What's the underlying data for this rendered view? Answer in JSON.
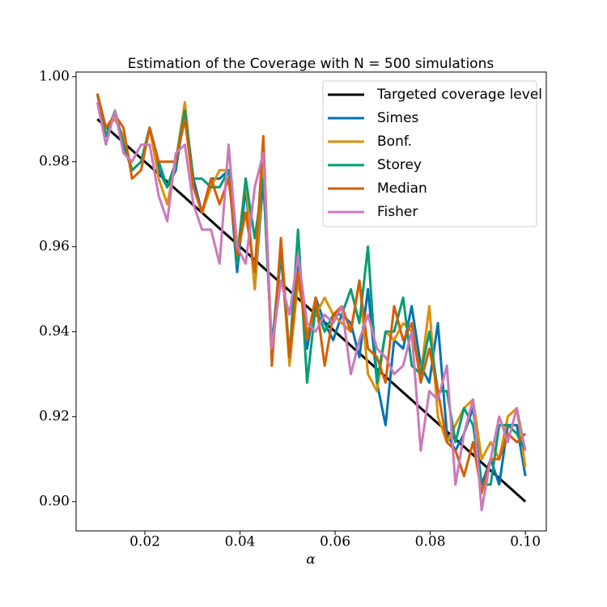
{
  "chart_data": {
    "type": "line",
    "title": "Estimation of the Coverage with N = 500 simulations",
    "xlabel": "α",
    "x": [
      0.01,
      0.0118,
      0.0137,
      0.0155,
      0.0173,
      0.0192,
      0.021,
      0.0229,
      0.0247,
      0.0265,
      0.0284,
      0.0302,
      0.032,
      0.0339,
      0.0357,
      0.0376,
      0.0394,
      0.0412,
      0.0431,
      0.0449,
      0.0467,
      0.0486,
      0.0504,
      0.0522,
      0.0541,
      0.0559,
      0.0578,
      0.0596,
      0.0614,
      0.0633,
      0.0651,
      0.0669,
      0.0688,
      0.0706,
      0.0724,
      0.0743,
      0.0761,
      0.078,
      0.0798,
      0.0816,
      0.0835,
      0.0853,
      0.0871,
      0.089,
      0.0908,
      0.0927,
      0.0945,
      0.0963,
      0.0982,
      0.1
    ],
    "series": [
      {
        "name": "Targeted coverage level",
        "color": "#000000",
        "values": [
          0.99,
          0.9882,
          0.9863,
          0.9845,
          0.9827,
          0.9808,
          0.979,
          0.9771,
          0.9753,
          0.9735,
          0.9716,
          0.9698,
          0.968,
          0.9661,
          0.9643,
          0.9624,
          0.9606,
          0.9588,
          0.9569,
          0.9551,
          0.9533,
          0.9514,
          0.9496,
          0.9478,
          0.9459,
          0.9441,
          0.9422,
          0.9404,
          0.9386,
          0.9367,
          0.9349,
          0.9331,
          0.9312,
          0.9294,
          0.9276,
          0.9257,
          0.9239,
          0.922,
          0.9202,
          0.9184,
          0.9165,
          0.9147,
          0.9129,
          0.911,
          0.9092,
          0.9073,
          0.9055,
          0.9037,
          0.9018,
          0.9
        ]
      },
      {
        "name": "Simes",
        "color": "#0173b2",
        "values": [
          0.996,
          0.986,
          0.992,
          0.984,
          0.978,
          0.98,
          0.988,
          0.978,
          0.974,
          0.978,
          0.992,
          0.976,
          0.968,
          0.976,
          0.976,
          0.978,
          0.954,
          0.974,
          0.95,
          0.976,
          0.936,
          0.958,
          0.934,
          0.956,
          0.936,
          0.948,
          0.942,
          0.938,
          0.944,
          0.942,
          0.934,
          0.95,
          0.928,
          0.918,
          0.938,
          0.936,
          0.946,
          0.932,
          0.928,
          0.942,
          0.916,
          0.912,
          0.916,
          0.922,
          0.904,
          0.91,
          0.904,
          0.918,
          0.918,
          0.906
        ]
      },
      {
        "name": "Bonf.",
        "color": "#de8f05",
        "values": [
          0.996,
          0.988,
          0.99,
          0.986,
          0.978,
          0.98,
          0.988,
          0.976,
          0.97,
          0.98,
          0.994,
          0.974,
          0.968,
          0.974,
          0.978,
          0.978,
          0.958,
          0.976,
          0.95,
          0.98,
          0.934,
          0.96,
          0.932,
          0.952,
          0.94,
          0.944,
          0.948,
          0.944,
          0.942,
          0.94,
          0.952,
          0.93,
          0.926,
          0.94,
          0.938,
          0.942,
          0.94,
          0.93,
          0.946,
          0.92,
          0.914,
          0.918,
          0.922,
          0.924,
          0.91,
          0.914,
          0.91,
          0.92,
          0.922,
          0.908
        ]
      },
      {
        "name": "Storey",
        "color": "#029e73",
        "values": [
          0.996,
          0.986,
          0.992,
          0.984,
          0.978,
          0.98,
          0.988,
          0.98,
          0.974,
          0.98,
          0.992,
          0.976,
          0.976,
          0.974,
          0.974,
          0.978,
          0.956,
          0.976,
          0.962,
          0.976,
          0.936,
          0.96,
          0.934,
          0.964,
          0.928,
          0.946,
          0.94,
          0.944,
          0.944,
          0.95,
          0.942,
          0.96,
          0.928,
          0.94,
          0.94,
          0.948,
          0.932,
          0.93,
          0.94,
          0.926,
          0.926,
          0.914,
          0.922,
          0.918,
          0.904,
          0.904,
          0.918,
          0.918,
          0.916,
          0.912
        ]
      },
      {
        "name": "Median",
        "color": "#d55e00",
        "values": [
          0.996,
          0.988,
          0.991,
          0.988,
          0.976,
          0.978,
          0.988,
          0.98,
          0.98,
          0.98,
          0.99,
          0.974,
          0.968,
          0.976,
          0.97,
          0.976,
          0.958,
          0.968,
          0.954,
          0.986,
          0.932,
          0.962,
          0.934,
          0.954,
          0.938,
          0.948,
          0.932,
          0.944,
          0.946,
          0.94,
          0.952,
          0.936,
          0.934,
          0.928,
          0.946,
          0.938,
          0.942,
          0.928,
          0.936,
          0.926,
          0.914,
          0.912,
          0.906,
          0.914,
          0.902,
          0.91,
          0.91,
          0.916,
          0.914,
          0.916
        ]
      },
      {
        "name": "Fisher",
        "color": "#cc78bc",
        "values": [
          0.994,
          0.984,
          0.992,
          0.982,
          0.98,
          0.984,
          0.984,
          0.972,
          0.966,
          0.982,
          0.984,
          0.97,
          0.964,
          0.964,
          0.956,
          0.984,
          0.96,
          0.956,
          0.974,
          0.982,
          0.936,
          0.952,
          0.944,
          0.958,
          0.942,
          0.94,
          0.944,
          0.942,
          0.946,
          0.93,
          0.938,
          0.944,
          0.936,
          0.934,
          0.93,
          0.932,
          0.94,
          0.912,
          0.926,
          0.924,
          0.932,
          0.904,
          0.916,
          0.924,
          0.898,
          0.91,
          0.92,
          0.914,
          0.922,
          0.912
        ]
      }
    ],
    "xlim": [
      0.00553,
      0.1044
    ],
    "ylim": [
      0.8931,
      1.0011
    ],
    "xticks": [
      0.02,
      0.04,
      0.06,
      0.08,
      {
        "value": 0.1,
        "label": "0.10"
      }
    ],
    "yticks": [
      {
        "value": 0.9,
        "label": "0.90"
      },
      0.92,
      0.94,
      0.96,
      0.98,
      {
        "value": 1,
        "label": "1.00"
      }
    ],
    "legend": "upper right"
  }
}
